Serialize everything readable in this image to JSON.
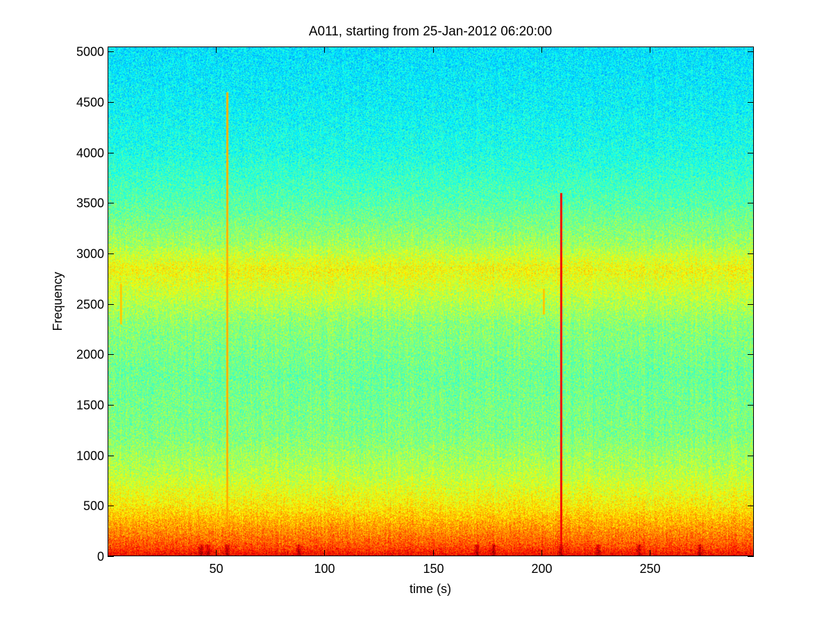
{
  "chart_data": {
    "type": "heatmap",
    "title": "A011, starting from 25-Jan-2012 06:20:00",
    "xlabel": "time (s)",
    "ylabel": "Frequency",
    "xlim": [
      0,
      298
    ],
    "ylim": [
      0,
      5050
    ],
    "xticks": [
      50,
      100,
      150,
      200,
      250
    ],
    "yticks": [
      0,
      500,
      1000,
      1500,
      2000,
      2500,
      3000,
      3500,
      4000,
      4500,
      5000
    ],
    "colormap": "jet",
    "grid": false,
    "intensity_profile": [
      {
        "frequency": 0,
        "level": 0.88
      },
      {
        "frequency": 100,
        "level": 0.8
      },
      {
        "frequency": 300,
        "level": 0.72
      },
      {
        "frequency": 500,
        "level": 0.64
      },
      {
        "frequency": 800,
        "level": 0.56
      },
      {
        "frequency": 1200,
        "level": 0.5
      },
      {
        "frequency": 1800,
        "level": 0.48
      },
      {
        "frequency": 2300,
        "level": 0.51
      },
      {
        "frequency": 2600,
        "level": 0.57
      },
      {
        "frequency": 2850,
        "level": 0.62
      },
      {
        "frequency": 3100,
        "level": 0.53
      },
      {
        "frequency": 3500,
        "level": 0.46
      },
      {
        "frequency": 4000,
        "level": 0.4
      },
      {
        "frequency": 4500,
        "level": 0.37
      },
      {
        "frequency": 5050,
        "level": 0.35
      }
    ],
    "transient_events": [
      {
        "time": 6,
        "frequency_min": 2300,
        "frequency_max": 2700,
        "level": 0.7
      },
      {
        "time": 55,
        "frequency_min": 0,
        "frequency_max": 4600,
        "level": 0.72
      },
      {
        "time": 209,
        "frequency_min": 0,
        "frequency_max": 3600,
        "level": 0.9
      },
      {
        "time": 201,
        "frequency_min": 2400,
        "frequency_max": 2650,
        "level": 0.7
      }
    ],
    "low_frequency_bursts": [
      43,
      46,
      55,
      88,
      170,
      178,
      209,
      226,
      245,
      273
    ]
  }
}
